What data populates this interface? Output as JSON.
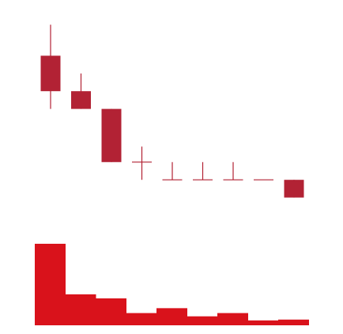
{
  "chart_data": [
    {
      "type": "candlestick",
      "title": "",
      "xlabel": "",
      "ylabel": "",
      "grid": false,
      "legend": "none",
      "up_color": "#b22234",
      "down_color": "#b22234",
      "ylim": [
        0,
        100
      ],
      "candles": [
        {
          "open": 82,
          "close": 66,
          "high": 96,
          "low": 58
        },
        {
          "open": 66,
          "close": 58,
          "high": 74,
          "low": 58
        },
        {
          "open": 58,
          "close": 34,
          "high": 58,
          "low": 34
        },
        {
          "open": 34,
          "close": 34,
          "high": 41,
          "low": 26
        },
        {
          "open": 26,
          "close": 26,
          "high": 34,
          "low": 26
        },
        {
          "open": 26,
          "close": 26,
          "high": 34,
          "low": 26
        },
        {
          "open": 26,
          "close": 26,
          "high": 34,
          "low": 26
        },
        {
          "open": 26,
          "close": 26,
          "high": 26,
          "low": 26
        },
        {
          "open": 26,
          "close": 18,
          "high": 26,
          "low": 18
        }
      ]
    },
    {
      "type": "bar",
      "title": "",
      "xlabel": "",
      "ylabel": "",
      "grid": false,
      "legend": "none",
      "color": "#d9121b",
      "ylim": [
        0,
        100
      ],
      "values": [
        100,
        38,
        33,
        15,
        21,
        11,
        15,
        6,
        7
      ]
    }
  ]
}
